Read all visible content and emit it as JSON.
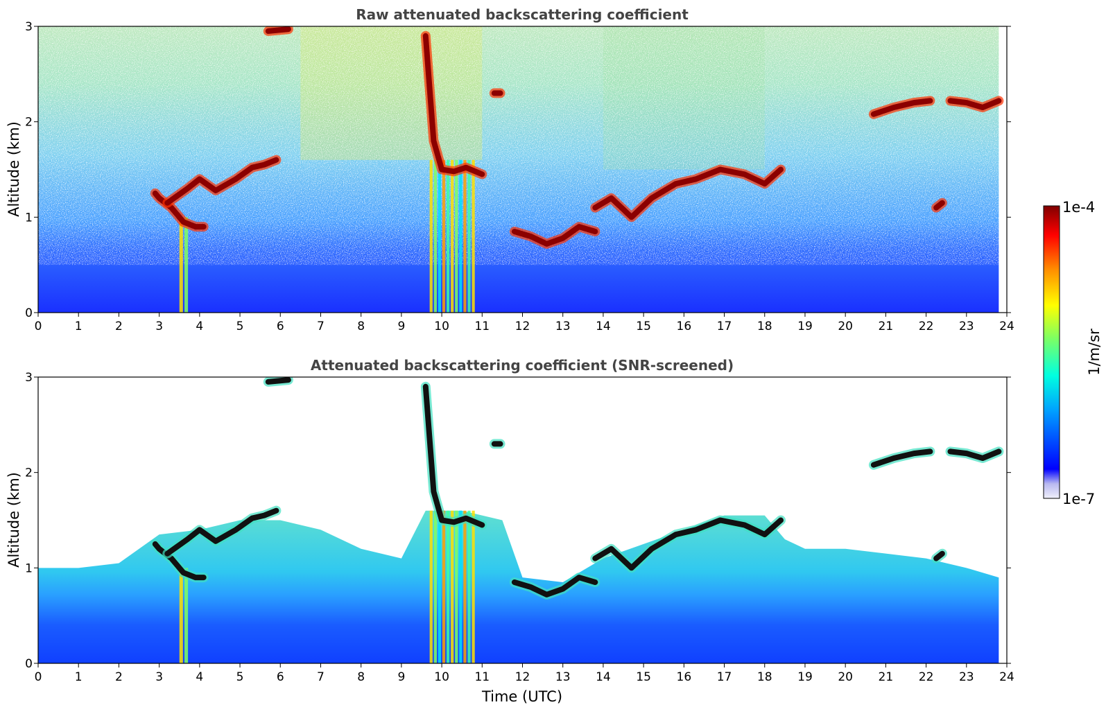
{
  "chart_data": [
    {
      "type": "heatmap",
      "title": "Raw attenuated backscattering coefficient",
      "xlabel": "",
      "ylabel": "Altitude (km)",
      "xlim": [
        0,
        24
      ],
      "ylim": [
        0,
        3
      ],
      "x_ticks": [
        "0",
        "1",
        "2",
        "3",
        "4",
        "5",
        "6",
        "7",
        "8",
        "9",
        "10",
        "11",
        "12",
        "13",
        "14",
        "15",
        "16",
        "17",
        "18",
        "19",
        "20",
        "21",
        "22",
        "23",
        "24"
      ],
      "y_ticks": [
        "0",
        "1",
        "2",
        "3"
      ],
      "data_time_end": 23.8,
      "cloud_layers": [
        {
          "t": [
            2.9,
            3.0,
            3.3,
            3.6,
            3.9,
            4.1
          ],
          "alt": [
            1.25,
            1.2,
            1.1,
            0.95,
            0.9,
            0.9
          ]
        },
        {
          "t": [
            3.2,
            3.7,
            4.0,
            4.4,
            4.9,
            5.3,
            5.6,
            5.9
          ],
          "alt": [
            1.15,
            1.3,
            1.4,
            1.28,
            1.4,
            1.52,
            1.55,
            1.6
          ]
        },
        {
          "t": [
            5.7,
            6.2
          ],
          "alt": [
            2.95,
            2.97
          ]
        },
        {
          "t": [
            9.6,
            9.8,
            10.0,
            10.3,
            10.6,
            11.0
          ],
          "alt": [
            2.9,
            1.8,
            1.5,
            1.48,
            1.52,
            1.45
          ]
        },
        {
          "t": [
            11.3,
            11.45
          ],
          "alt": [
            2.3,
            2.3
          ]
        },
        {
          "t": [
            11.8,
            12.2,
            12.6,
            13.0,
            13.4,
            13.8
          ],
          "alt": [
            0.85,
            0.8,
            0.72,
            0.78,
            0.9,
            0.85
          ]
        },
        {
          "t": [
            13.8,
            14.2,
            14.7,
            15.2,
            15.8,
            16.3,
            16.9,
            17.5,
            18.0,
            18.4
          ],
          "alt": [
            1.1,
            1.2,
            1.0,
            1.2,
            1.35,
            1.4,
            1.5,
            1.45,
            1.35,
            1.5
          ]
        },
        {
          "t": [
            20.7,
            21.2,
            21.7,
            22.1
          ],
          "alt": [
            2.08,
            2.15,
            2.2,
            2.22
          ]
        },
        {
          "t": [
            22.6,
            23.0,
            23.4,
            23.8
          ],
          "alt": [
            2.22,
            2.2,
            2.15,
            2.22
          ]
        },
        {
          "t": [
            22.25,
            22.4
          ],
          "alt": [
            1.1,
            1.15
          ]
        }
      ],
      "precipitation_columns": [
        {
          "t": [
            3.5,
            3.75
          ],
          "top": 1.0
        },
        {
          "t": [
            9.7,
            10.85
          ],
          "top": 1.6
        }
      ]
    },
    {
      "type": "heatmap",
      "title": "Attenuated backscattering coefficient (SNR-screened)",
      "xlabel": "Time (UTC)",
      "ylabel": "Altitude (km)",
      "xlim": [
        0,
        24
      ],
      "ylim": [
        0,
        3
      ],
      "x_ticks": [
        "0",
        "1",
        "2",
        "3",
        "4",
        "5",
        "6",
        "7",
        "8",
        "9",
        "10",
        "11",
        "12",
        "13",
        "14",
        "15",
        "16",
        "17",
        "18",
        "19",
        "20",
        "21",
        "22",
        "23",
        "24"
      ],
      "y_ticks": [
        "0",
        "1",
        "2",
        "3"
      ],
      "data_time_end": 23.8,
      "screened_top": {
        "t": [
          0,
          1,
          2,
          3,
          4,
          5,
          6,
          7,
          8,
          9,
          9.6,
          10.5,
          11.5,
          12,
          13,
          14,
          15,
          16,
          17,
          18,
          18.5,
          19,
          20,
          21,
          22,
          23,
          23.8
        ],
        "alt": [
          1.0,
          1.0,
          1.05,
          1.35,
          1.4,
          1.5,
          1.5,
          1.4,
          1.2,
          1.1,
          1.6,
          1.6,
          1.5,
          0.9,
          0.85,
          1.1,
          1.25,
          1.4,
          1.55,
          1.55,
          1.3,
          1.2,
          1.2,
          1.15,
          1.1,
          1.0,
          0.9
        ]
      }
    }
  ],
  "colorbar": {
    "label": "1/m/sr",
    "max_label": "1e-4",
    "min_label": "1e-7",
    "scale": "log",
    "range": [
      1e-07,
      0.0001
    ],
    "colormap": "jet",
    "colors": [
      "#f0f0fa",
      "#b8b8f0",
      "#0000ff",
      "#00a0ff",
      "#00ffe0",
      "#80ff60",
      "#ffff00",
      "#ff9000",
      "#ff0000",
      "#800000"
    ]
  }
}
